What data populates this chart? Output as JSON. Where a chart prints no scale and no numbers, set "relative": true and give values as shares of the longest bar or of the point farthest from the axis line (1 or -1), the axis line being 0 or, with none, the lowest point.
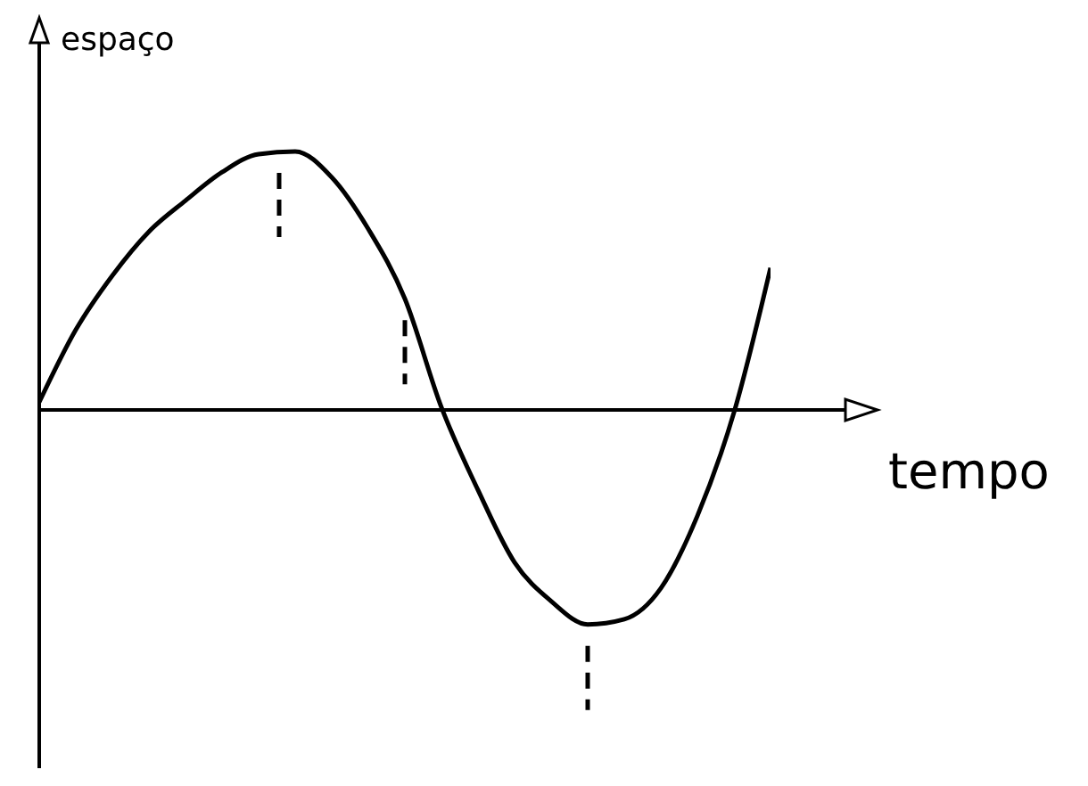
{
  "chart_data": {
    "type": "line",
    "xlabel": "tempo",
    "ylabel": "espaço",
    "relative": true,
    "categories": [
      null,
      null,
      null,
      null,
      null,
      null,
      null,
      null,
      null,
      null,
      null,
      null,
      null,
      null,
      null,
      null,
      null,
      null,
      null,
      null,
      null
    ],
    "series": [
      {
        "color": "#000000",
        "values": [
          0.03,
          0.31,
          0.52,
          0.69,
          0.81,
          0.92,
          0.99,
          1,
          0.9,
          0.7,
          0.43,
          0.01,
          -0.31,
          -0.59,
          -0.74,
          -0.83,
          -0.81,
          -0.69,
          -0.41,
          -0.01,
          0.55
        ]
      }
    ],
    "marker": "none",
    "grid": false
  }
}
